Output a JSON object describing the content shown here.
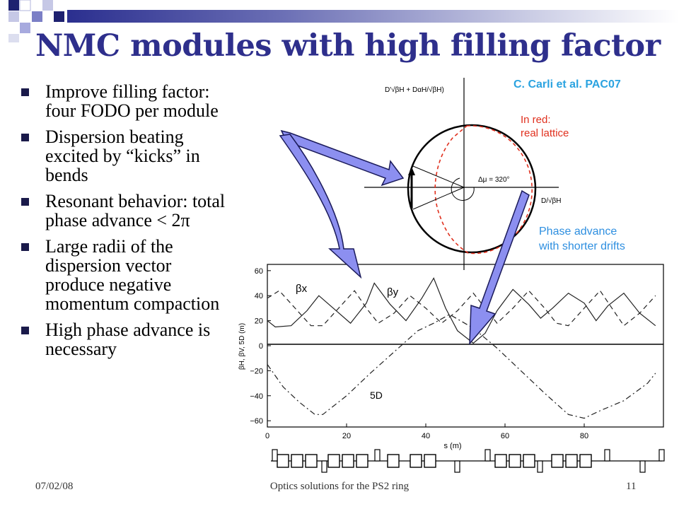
{
  "slide": {
    "title": "NMC modules with high filling factor",
    "bullets": [
      "Improve filling factor: four FODO per module",
      "Dispersion beating excited by “kicks” in bends",
      "Resonant behavior: total phase advance < 2π",
      "Large radii of the dispersion vector produce negative momentum compaction",
      "High phase advance is necessary"
    ],
    "footer": {
      "date": "07/02/08",
      "center": "Optics solutions for the PS2 ring",
      "page": "11"
    },
    "credit": "C. Carli et al. PAC07",
    "note_red_1": "In red:",
    "note_red_2": "real lattice",
    "note_blue_1": "Phase advance",
    "note_blue_2": "with shorter drifts",
    "colors": {
      "title": "#2e2f8c",
      "credit": "#2ba3e0",
      "red_note": "#e0301e",
      "blue_note": "#2e8fe0",
      "arrow_fill": "#8c8ff0"
    }
  },
  "circle_diagram": {
    "y_axis_label": "D'√βH + DαH/√βH)",
    "x_axis_label": "D/√βH",
    "angle_label": "Δμ = 320°"
  },
  "chart_data": {
    "type": "line",
    "xlabel": "s (m)",
    "ylabel": "βH, βV, 5D (m)",
    "xlim": [
      0,
      100
    ],
    "ylim": [
      -65,
      65
    ],
    "xticks": [
      0,
      20,
      40,
      60,
      80
    ],
    "yticks": [
      60,
      40,
      20,
      0,
      -20,
      -40,
      -60
    ],
    "series_labels": [
      "βx",
      "βy",
      "5D"
    ],
    "series": [
      {
        "name": "βx",
        "style": "solid",
        "x": [
          0,
          2,
          6,
          10,
          13,
          17,
          21,
          25,
          27,
          31,
          35,
          39,
          42,
          45,
          48,
          52,
          55,
          58,
          62,
          66,
          69,
          72,
          76,
          80,
          83,
          86,
          90,
          94,
          98
        ],
        "y": [
          20,
          15,
          16,
          28,
          40,
          29,
          18,
          34,
          50,
          33,
          20,
          38,
          54,
          30,
          12,
          2,
          10,
          28,
          45,
          33,
          22,
          30,
          42,
          34,
          20,
          32,
          42,
          26,
          16
        ]
      },
      {
        "name": "βy",
        "style": "dashed",
        "x": [
          0,
          3,
          7,
          11,
          14,
          18,
          22,
          25,
          28,
          32,
          36,
          40,
          44,
          48,
          52,
          55,
          58,
          62,
          66,
          70,
          73,
          76,
          80,
          84,
          87,
          90,
          94,
          98
        ],
        "y": [
          38,
          44,
          30,
          16,
          16,
          30,
          44,
          30,
          18,
          26,
          40,
          30,
          18,
          28,
          42,
          30,
          18,
          30,
          44,
          30,
          18,
          16,
          30,
          44,
          30,
          16,
          26,
          40
        ]
      },
      {
        "name": "5D",
        "style": "dashdot",
        "x": [
          0,
          4,
          8,
          12,
          14,
          20,
          26,
          32,
          38,
          42,
          46,
          52,
          58,
          64,
          70,
          76,
          80,
          84,
          90,
          96,
          98
        ],
        "y": [
          -15,
          -33,
          -45,
          -55,
          -55,
          -40,
          -22,
          -5,
          12,
          18,
          25,
          14,
          -2,
          -20,
          -38,
          -55,
          -58,
          -52,
          -44,
          -30,
          -22
        ]
      }
    ]
  }
}
